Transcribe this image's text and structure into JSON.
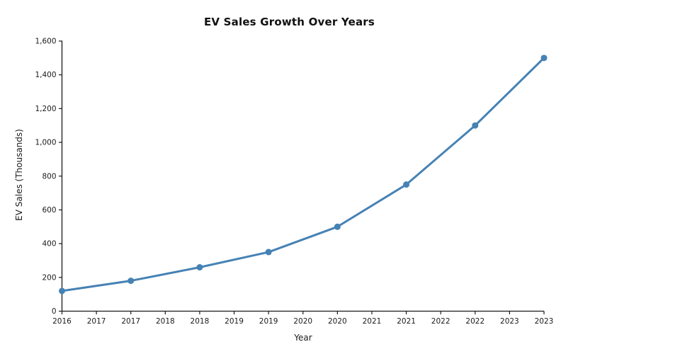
{
  "figure": {
    "background_color": "#ffffff"
  },
  "chart_data": {
    "type": "line",
    "title": "EV Sales Growth Over Years",
    "xlabel": "Year",
    "ylabel": "EV Sales (Thousands)",
    "x": [
      2016,
      2017,
      2018,
      2019,
      2020,
      2021,
      2022,
      2023
    ],
    "values": [
      120,
      180,
      260,
      350,
      500,
      750,
      1100,
      1500
    ],
    "xlim": [
      2016,
      2023
    ],
    "ylim": [
      0,
      1600
    ],
    "x_ticks": [
      2016,
      2016.5,
      2017,
      2017.5,
      2018,
      2018.5,
      2019,
      2019.5,
      2020,
      2020.5,
      2021,
      2021.5,
      2022,
      2022.5,
      2023
    ],
    "x_tick_labels": [
      "2016",
      "2017",
      "2017",
      "2018",
      "2018",
      "2019",
      "2019",
      "2020",
      "2020",
      "2021",
      "2021",
      "2022",
      "2022",
      "2023",
      "2023"
    ],
    "y_ticks": [
      0,
      200,
      400,
      600,
      800,
      1000,
      1200,
      1400,
      1600
    ],
    "y_tick_labels": [
      "0",
      "200",
      "400",
      "600",
      "800",
      "1,000",
      "1,200",
      "1,400",
      "1,600"
    ],
    "grid": false,
    "legend": false,
    "line_color": "#4682B4",
    "marker_color": "#4682B4",
    "axis_color": "#1a1a1a",
    "text_color": "#1a1a1a",
    "line_width": 3,
    "marker_size": 9
  }
}
